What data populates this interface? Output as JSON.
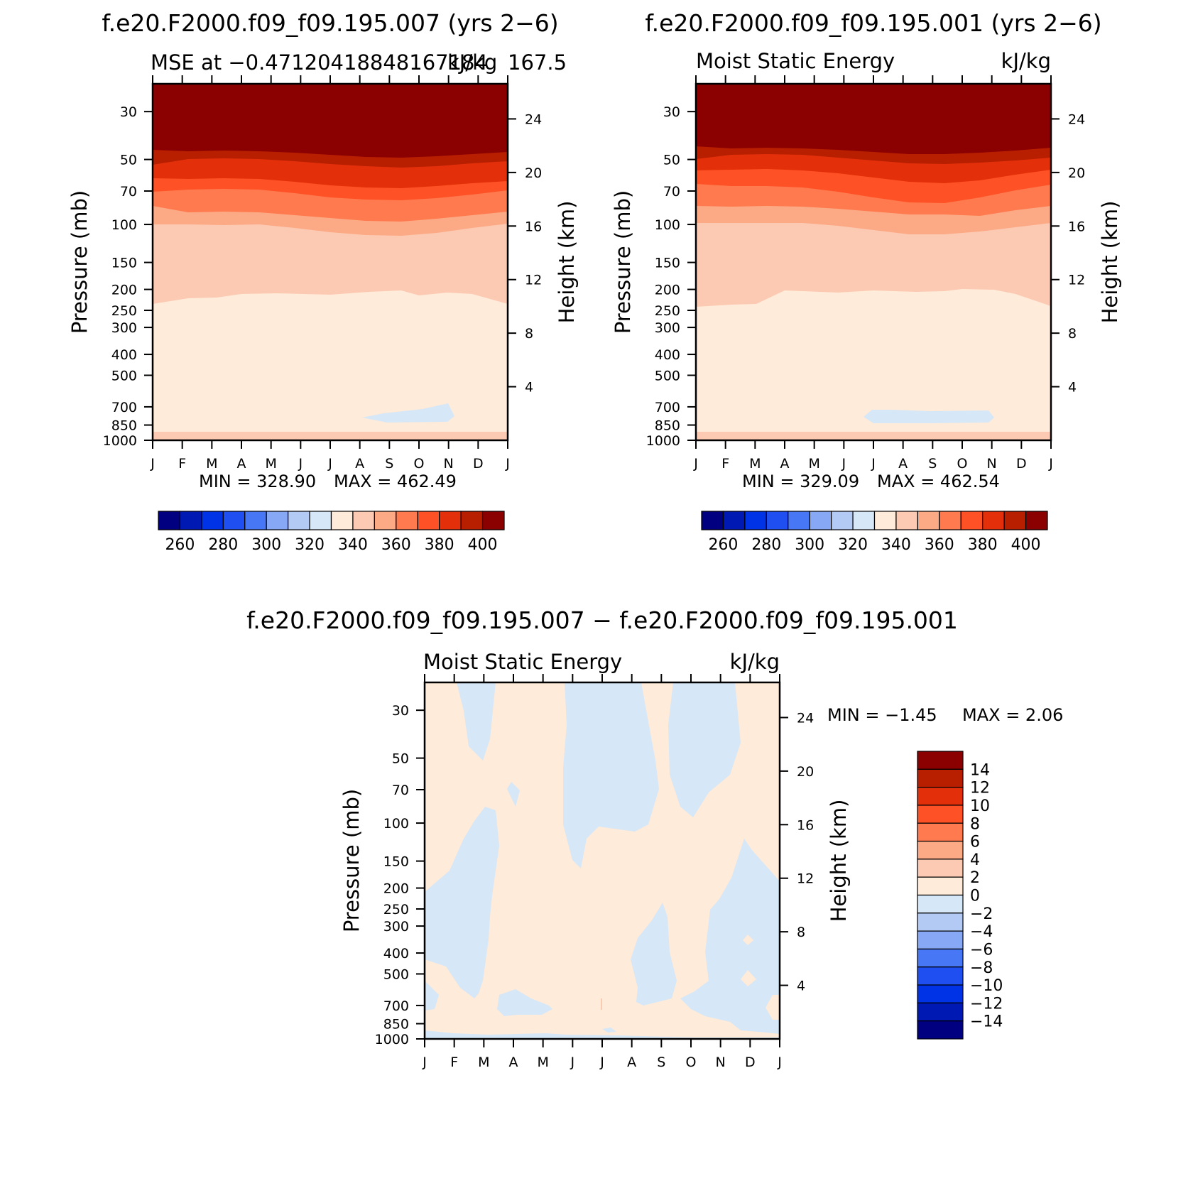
{
  "palette": [
    "#000080",
    "#0019b3",
    "#0032e6",
    "#1f4ff0",
    "#4877f5",
    "#87a9f5",
    "#b3caf5",
    "#d6e7f7",
    "#ffebd9",
    "#fccab3",
    "#fcaa85",
    "#ff7a4f",
    "#ff5126",
    "#e3300a",
    "#b81f00",
    "#8b0000"
  ],
  "months": [
    "J",
    "F",
    "M",
    "A",
    "M",
    "J",
    "J",
    "A",
    "S",
    "O",
    "N",
    "D",
    "J"
  ],
  "pressure_ticks": [
    "30",
    "50",
    "70",
    "100",
    "150",
    "200",
    "250",
    "300",
    "400",
    "500",
    "700",
    "850",
    "1000"
  ],
  "height_ticks": [
    "24",
    "20",
    "16",
    "12",
    "8",
    "4"
  ],
  "main_colorbar_labels": [
    "260",
    "280",
    "300",
    "320",
    "340",
    "360",
    "380",
    "400"
  ],
  "diff_colorbar_labels": [
    "14",
    "12",
    "10",
    "8",
    "6",
    "4",
    "2",
    "0",
    "−2",
    "−4",
    "−6",
    "−8",
    "−10",
    "−12",
    "−14"
  ],
  "chart_data": [
    {
      "type": "heatmap",
      "title": "f.e20.F2000.f09_f09.195.007 (yrs 2−6)",
      "left_subtitle": "MSE at −0.47120418848167184",
      "right_subtitle": "kJ/kg",
      "extra_subtitle": "167.5",
      "xlabel": "",
      "ylabel": "Pressure (mb)",
      "ylabel_right": "Height (km)",
      "min_label": "MIN = 328.90",
      "max_label": "MAX = 462.49",
      "min": 328.9,
      "max": 462.49,
      "levels": [
        260,
        270,
        280,
        290,
        300,
        310,
        320,
        330,
        340,
        350,
        360,
        370,
        380,
        390,
        400
      ]
    },
    {
      "type": "heatmap",
      "title": "f.e20.F2000.f09_f09.195.001 (yrs 2−6)",
      "left_subtitle": "Moist Static Energy",
      "right_subtitle": "kJ/kg",
      "xlabel": "",
      "ylabel": "Pressure (mb)",
      "ylabel_right": "Height (km)",
      "min_label": "MIN = 329.09",
      "max_label": "MAX = 462.54",
      "min": 329.09,
      "max": 462.54,
      "levels": [
        260,
        270,
        280,
        290,
        300,
        310,
        320,
        330,
        340,
        350,
        360,
        370,
        380,
        390,
        400
      ]
    },
    {
      "type": "heatmap",
      "title": "f.e20.F2000.f09_f09.195.007 − f.e20.F2000.f09_f09.195.001",
      "left_subtitle": "Moist Static Energy",
      "right_subtitle": "kJ/kg",
      "xlabel": "",
      "ylabel": "Pressure (mb)",
      "ylabel_right": "Height (km)",
      "min_label": "MIN = −1.45",
      "max_label": "MAX = 2.06",
      "min": -1.45,
      "max": 2.06,
      "levels": [
        -14,
        -12,
        -10,
        -8,
        -6,
        -4,
        -2,
        0,
        2,
        4,
        6,
        8,
        10,
        12,
        14
      ]
    }
  ]
}
